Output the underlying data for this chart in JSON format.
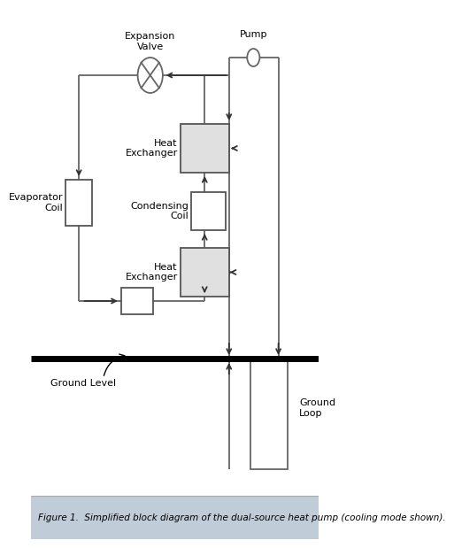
{
  "fig_width": 4.59,
  "fig_height": 5.99,
  "bg_color": "#ffffff",
  "line_color": "#666666",
  "caption": "Figure 1.  Simplified block diagram of the dual-source heat pump (cooling mode shown).",
  "caption_bg": "#c0ccd8"
}
